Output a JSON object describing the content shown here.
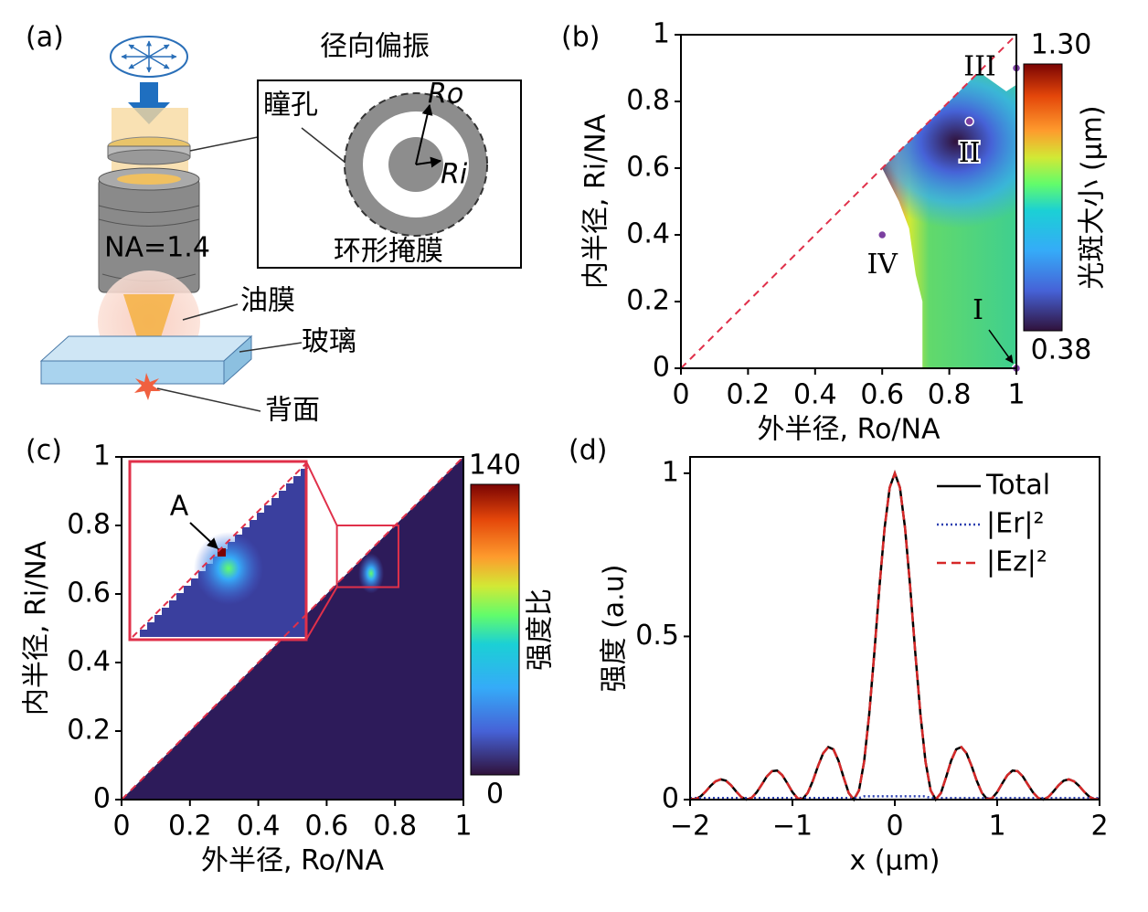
{
  "diagram": {
    "panel_label": "(a)",
    "title": "径向偏振",
    "pupil": "瞳孔",
    "outer_radius": "Ro",
    "inner_radius": "Ri",
    "mask": "环形掩膜",
    "objective": "NA=1.4",
    "oil": "油膜",
    "glass": "玻璃",
    "back": "背面"
  },
  "chart_data": [
    {
      "type": "heatmap",
      "panel_label": "(b)",
      "x_label": "外半径, Ro/NA",
      "y_label": "内半径, Ri/NA",
      "xlim": [
        0,
        1
      ],
      "ylim": [
        0,
        1
      ],
      "xticks": [
        0,
        0.2,
        0.4,
        0.6,
        0.8,
        1
      ],
      "yticks": [
        0,
        0.2,
        0.4,
        0.6,
        0.8,
        1
      ],
      "colorbar": {
        "label": "光斑大小 (μm)",
        "clim": [
          0.38,
          1.3
        ],
        "ticks": [
          {
            "value": 1.3,
            "label": "1.30"
          },
          0.38
        ]
      },
      "points": {
        "labels": [
          "I",
          "II",
          "III",
          "IV"
        ],
        "x": [
          1,
          0.86,
          1,
          0.6
        ],
        "y": [
          0,
          0.74,
          0.9,
          0.4
        ],
        "color": "#7b3fa0"
      }
    },
    {
      "type": "heatmap",
      "panel_label": "(c)",
      "x_label": "外半径, Ro/NA",
      "y_label": "内半径, Ri/NA",
      "xlim": [
        0,
        1
      ],
      "ylim": [
        0,
        1
      ],
      "xticks": [
        0,
        0.2,
        0.4,
        0.6,
        0.8,
        1
      ],
      "yticks": [
        0,
        0.2,
        0.4,
        0.6,
        0.8,
        1
      ],
      "colorbar": {
        "label": "强度比",
        "clim": [
          0,
          140
        ],
        "ticks": [
          140,
          0
        ]
      },
      "inset_annotation": "A"
    },
    {
      "type": "line",
      "panel_label": "(d)",
      "x_label": "x (μm)",
      "y_label": "强度 (a.u)",
      "xlim": [
        -2,
        2
      ],
      "ylim": [
        0,
        1.05
      ],
      "xticks": [
        {
          "value": -2,
          "label": "−2"
        },
        {
          "value": -1,
          "label": "−1"
        },
        0,
        1,
        2
      ],
      "yticks": [
        0,
        0.5,
        1
      ],
      "legend": "upper right",
      "x": [
        -2,
        -1.95,
        -1.9,
        -1.85,
        -1.8,
        -1.75,
        -1.7,
        -1.65,
        -1.6,
        -1.55,
        -1.5,
        -1.45,
        -1.4,
        -1.35,
        -1.3,
        -1.25,
        -1.2,
        -1.15,
        -1.1,
        -1.05,
        -1,
        -0.95,
        -0.9,
        -0.85,
        -0.8,
        -0.75,
        -0.7,
        -0.65,
        -0.6,
        -0.55,
        -0.5,
        -0.45,
        -0.4,
        -0.35,
        -0.3,
        -0.25,
        -0.2,
        -0.15,
        -0.1,
        -0.05,
        0,
        0.05,
        0.1,
        0.15,
        0.2,
        0.25,
        0.3,
        0.35,
        0.4,
        0.45,
        0.5,
        0.55,
        0.6,
        0.65,
        0.7,
        0.75,
        0.8,
        0.85,
        0.9,
        0.95,
        1,
        1.05,
        1.1,
        1.15,
        1.2,
        1.25,
        1.3,
        1.35,
        1.4,
        1.45,
        1.5,
        1.55,
        1.6,
        1.65,
        1.7,
        1.75,
        1.8,
        1.85,
        1.9,
        1.95,
        2
      ],
      "series": [
        {
          "name": "Total",
          "color": "#000000",
          "style": "solid",
          "values": [
            0.002,
            0.001,
            0.009,
            0.024,
            0.042,
            0.056,
            0.062,
            0.058,
            0.044,
            0.025,
            0.008,
            0.0,
            0.005,
            0.022,
            0.046,
            0.071,
            0.087,
            0.089,
            0.075,
            0.05,
            0.023,
            0.004,
            0.002,
            0.021,
            0.058,
            0.103,
            0.142,
            0.161,
            0.154,
            0.119,
            0.068,
            0.02,
            0.0,
            0.028,
            0.116,
            0.262,
            0.45,
            0.652,
            0.832,
            0.956,
            1,
            0.956,
            0.832,
            0.652,
            0.45,
            0.262,
            0.116,
            0.028,
            0.0,
            0.02,
            0.068,
            0.119,
            0.154,
            0.161,
            0.142,
            0.103,
            0.058,
            0.021,
            0.002,
            0.004,
            0.023,
            0.05,
            0.075,
            0.089,
            0.087,
            0.071,
            0.046,
            0.022,
            0.005,
            0.0,
            0.008,
            0.025,
            0.044,
            0.058,
            0.062,
            0.056,
            0.042,
            0.024,
            0.009,
            0.001,
            0.002
          ]
        },
        {
          "name": "|Er|²",
          "color": "#2b3fb0",
          "style": "dotted",
          "values": [
            0.005,
            0.005,
            0.005,
            0.005,
            0.005,
            0.005,
            0.005,
            0.005,
            0.005,
            0.005,
            0.005,
            0.005,
            0.005,
            0.005,
            0.005,
            0.005,
            0.005,
            0.005,
            0.005,
            0.005,
            0.005,
            0.005,
            0.005,
            0.005,
            0.005,
            0.005,
            0.005,
            0.005,
            0.005,
            0.005,
            0.005,
            0.005,
            0.005,
            0.005,
            0.01,
            0.01,
            0.01,
            0.01,
            0.01,
            0.01,
            0.01,
            0.01,
            0.01,
            0.01,
            0.01,
            0.01,
            0.01,
            0.005,
            0.005,
            0.005,
            0.005,
            0.005,
            0.005,
            0.005,
            0.005,
            0.005,
            0.005,
            0.005,
            0.005,
            0.005,
            0.005,
            0.005,
            0.005,
            0.005,
            0.005,
            0.005,
            0.005,
            0.005,
            0.005,
            0.005,
            0.005,
            0.005,
            0.005,
            0.005,
            0.005,
            0.005,
            0.005,
            0.005,
            0.005,
            0.005,
            0.005
          ]
        },
        {
          "name": "|Ez|²",
          "color": "#d62828",
          "style": "dashed",
          "values": [
            0.002,
            0.001,
            0.009,
            0.024,
            0.042,
            0.056,
            0.062,
            0.058,
            0.044,
            0.025,
            0.008,
            0.0,
            0.005,
            0.022,
            0.046,
            0.071,
            0.087,
            0.089,
            0.075,
            0.05,
            0.023,
            0.004,
            0.002,
            0.021,
            0.058,
            0.103,
            0.142,
            0.161,
            0.154,
            0.119,
            0.068,
            0.02,
            0.0,
            0.028,
            0.116,
            0.262,
            0.45,
            0.652,
            0.832,
            0.956,
            1,
            0.956,
            0.832,
            0.652,
            0.45,
            0.262,
            0.116,
            0.028,
            0.0,
            0.02,
            0.068,
            0.119,
            0.154,
            0.161,
            0.142,
            0.103,
            0.058,
            0.021,
            0.002,
            0.004,
            0.023,
            0.05,
            0.075,
            0.089,
            0.087,
            0.071,
            0.046,
            0.022,
            0.005,
            0.0,
            0.008,
            0.025,
            0.044,
            0.058,
            0.062,
            0.056,
            0.042,
            0.024,
            0.009,
            0.001,
            0.002
          ]
        }
      ]
    }
  ]
}
